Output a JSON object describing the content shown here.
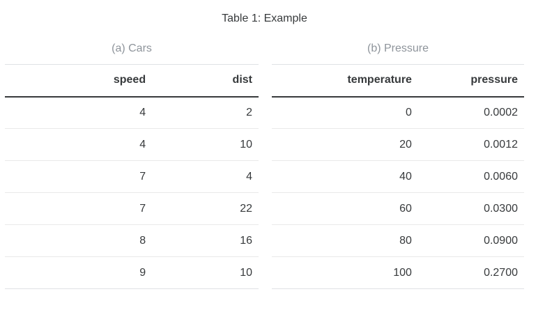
{
  "page": {
    "title": "Table 1: Example"
  },
  "tables": [
    {
      "id": "cars",
      "caption": "(a) Cars",
      "columns": [
        "speed",
        "dist"
      ],
      "rows": [
        [
          "4",
          "2"
        ],
        [
          "4",
          "10"
        ],
        [
          "7",
          "4"
        ],
        [
          "7",
          "22"
        ],
        [
          "8",
          "16"
        ],
        [
          "9",
          "10"
        ]
      ]
    },
    {
      "id": "pressure",
      "caption": "(b) Pressure",
      "columns": [
        "temperature",
        "pressure"
      ],
      "rows": [
        [
          "0",
          "0.0002"
        ],
        [
          "20",
          "0.0012"
        ],
        [
          "40",
          "0.0060"
        ],
        [
          "60",
          "0.0300"
        ],
        [
          "80",
          "0.0900"
        ],
        [
          "100",
          "0.2700"
        ]
      ]
    }
  ],
  "colors": {
    "title_text": "#373a3c",
    "caption_text": "#8e949b",
    "body_text": "#373a3c",
    "header_rule": "#373a3c",
    "row_rule": "#e9e9e9",
    "table_edge": "#dfe2e5",
    "background": "#ffffff"
  }
}
